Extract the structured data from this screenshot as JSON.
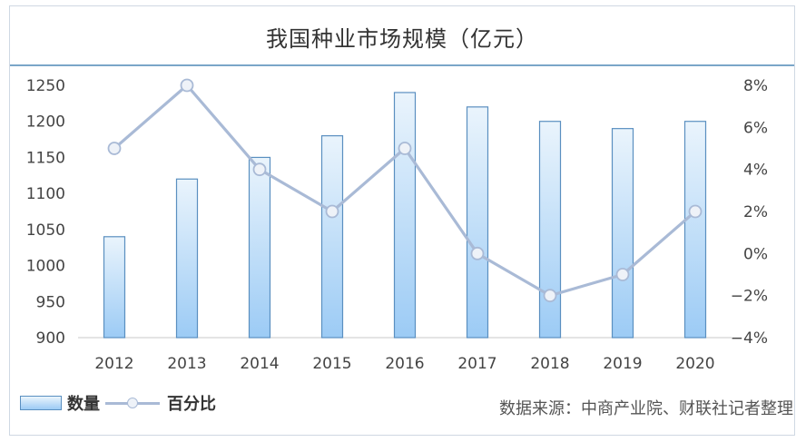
{
  "chart_data": {
    "type": "bar",
    "title": "我国种业市场规模（亿元）",
    "categories": [
      "2012",
      "2013",
      "2014",
      "2015",
      "2016",
      "2017",
      "2018",
      "2019",
      "2020"
    ],
    "series": [
      {
        "name": "数量",
        "type": "bar",
        "axis": "left",
        "values": [
          1040,
          1120,
          1150,
          1180,
          1240,
          1220,
          1200,
          1190,
          1200
        ]
      },
      {
        "name": "百分比",
        "type": "line",
        "axis": "right",
        "values": [
          5,
          8,
          4,
          2,
          5,
          0,
          -2,
          -1,
          2
        ]
      }
    ],
    "ylim": [
      900,
      1250
    ],
    "y_ticks": [
      "1250",
      "1200",
      "1150",
      "1100",
      "1050",
      "1000",
      "950",
      "900"
    ],
    "y2lim": [
      -4,
      8
    ],
    "y2_ticks": [
      "8%",
      "6%",
      "4%",
      "2%",
      "0%",
      "−2%",
      "−4%"
    ],
    "grid": false,
    "legend_position": "bottom-left",
    "source": "数据来源：中商产业院、财联社记者整理",
    "colors": {
      "bar_top": "#eaf4fc",
      "bar_bottom": "#9ccbf5",
      "bar_border": "#5a8fc0",
      "line": "#a9bad6",
      "marker_fill": "#eef2f8",
      "axis": "#c8c8c8",
      "title_rule": "#7aa6c8"
    }
  }
}
